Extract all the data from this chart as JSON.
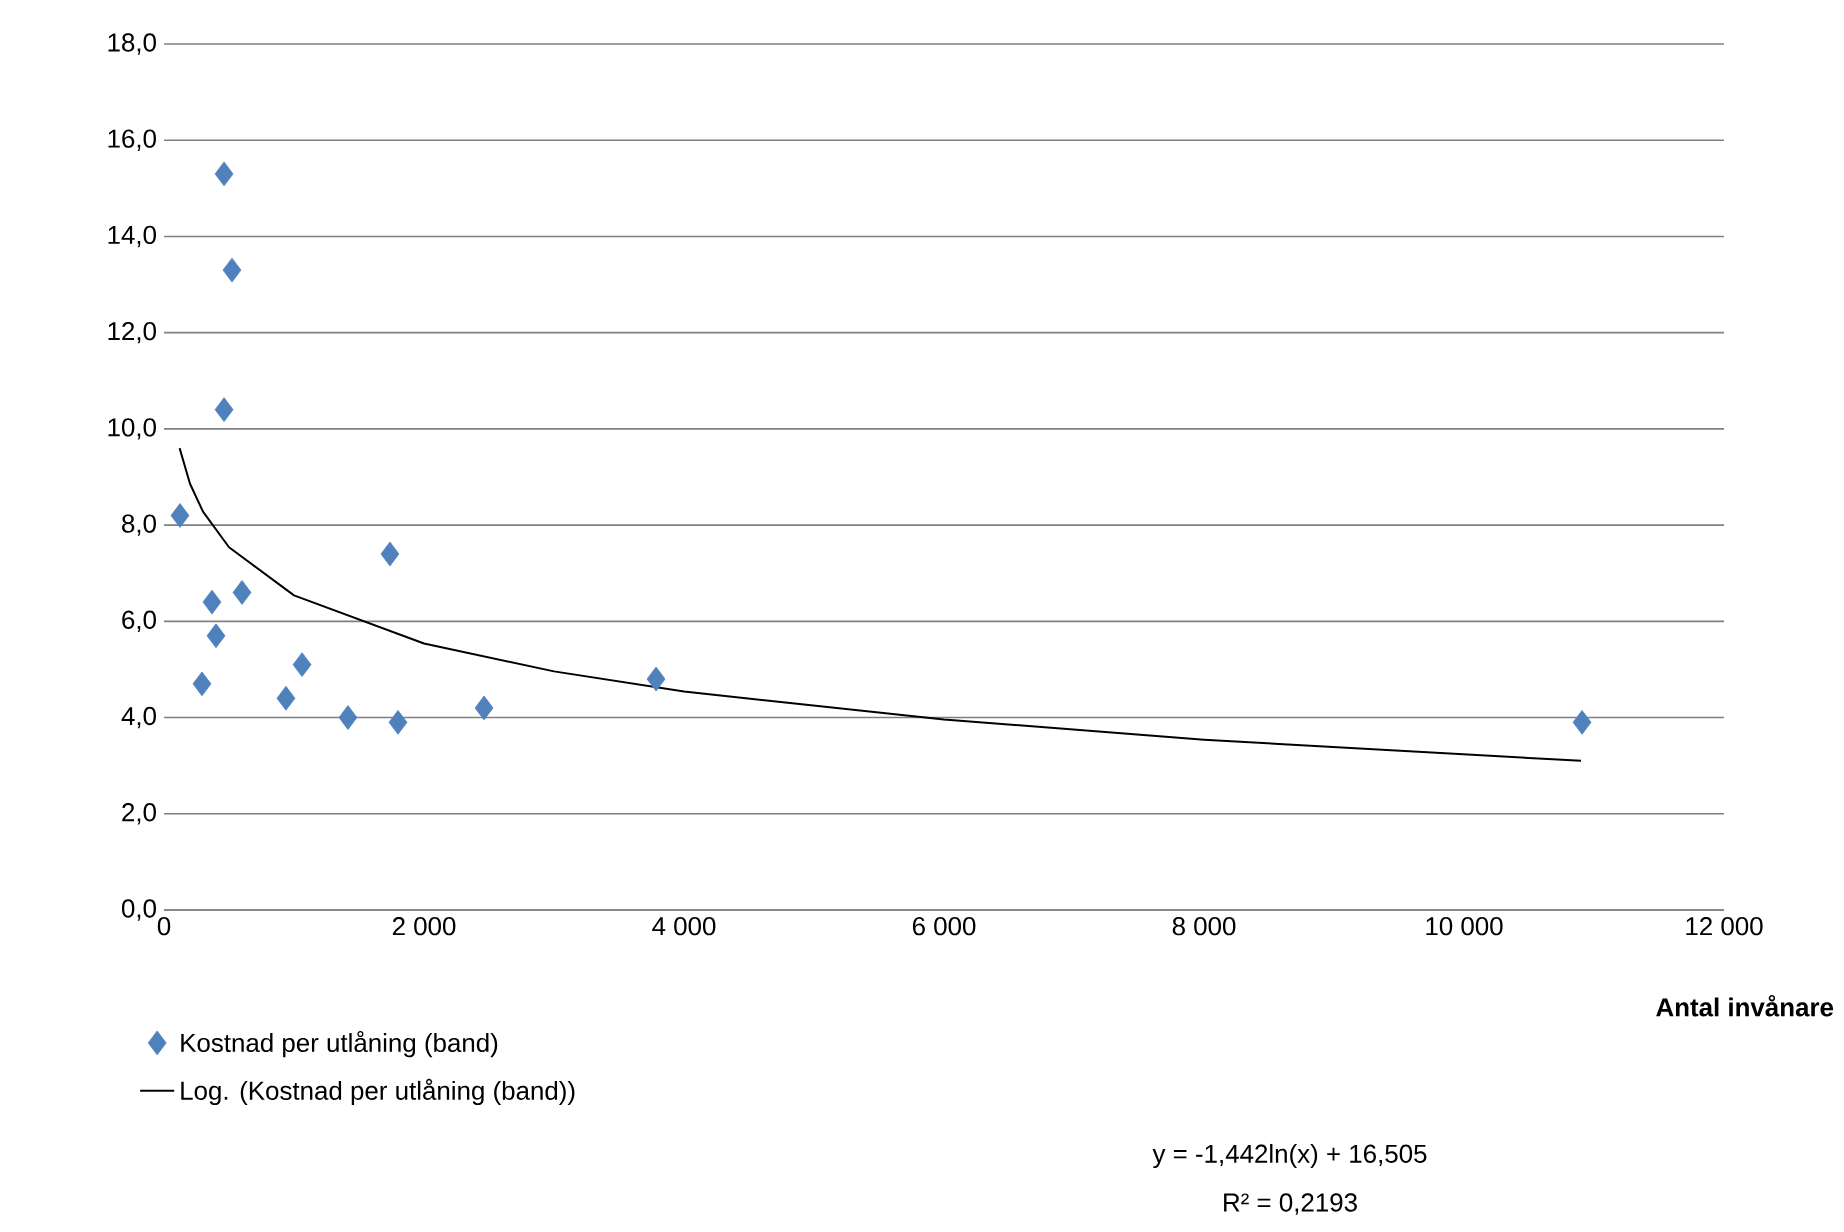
{
  "chart_data": {
    "type": "scatter",
    "xlabel": "Antal invånare",
    "xlim": [
      0,
      12000
    ],
    "ylim": [
      0,
      18
    ],
    "xticks": [
      0,
      {
        "value": 2000,
        "label": "2 000"
      },
      {
        "value": 4000,
        "label": "4 000"
      },
      {
        "value": 6000,
        "label": "6 000"
      },
      {
        "value": 8000,
        "label": "8 000"
      },
      {
        "value": 10000,
        "label": "10 000"
      },
      {
        "value": 12000,
        "label": "12 000"
      }
    ],
    "yticks": [
      {
        "value": 0,
        "label": "0,0"
      },
      {
        "value": 2,
        "label": "2,0"
      },
      {
        "value": 4,
        "label": "4,0"
      },
      {
        "value": 6,
        "label": "6,0"
      },
      {
        "value": 8,
        "label": "8,0"
      },
      {
        "value": 10,
        "label": "10,0"
      },
      {
        "value": 12,
        "label": "12,0"
      },
      {
        "value": 14,
        "label": "14,0"
      },
      {
        "value": 16,
        "label": "16,0"
      },
      {
        "value": 18,
        "label": "18,0"
      }
    ],
    "grid": "y",
    "legend": "bottom left",
    "marker": "diamond",
    "series": [
      {
        "name": "Kostnad per utlåning  (band)",
        "color": "#4f81bd",
        "x": [
          123,
          462,
          523,
          462,
          369,
          400,
          600,
          292,
          938,
          1062,
          1415,
          1800,
          1738,
          2462,
          3785,
          10908
        ],
        "values": [
          8.2,
          15.3,
          13.3,
          10.4,
          6.4,
          5.7,
          6.6,
          4.7,
          4.4,
          5.1,
          4.0,
          3.9,
          7.4,
          4.2,
          4.8,
          3.9
        ]
      },
      {
        "name": "Log. (Kostnad per utlåning  (band))",
        "type": "line",
        "color": "#000000",
        "marker": "none",
        "x": [
          120,
          200,
          300,
          500,
          1000,
          2000,
          3000,
          4000,
          6000,
          8000,
          10900
        ],
        "values": [
          9.6,
          8.86,
          8.28,
          7.54,
          6.54,
          5.54,
          4.96,
          4.54,
          3.96,
          3.54,
          3.1
        ]
      }
    ],
    "annotations": [
      "y = -1,442ln(x) + 16,505",
      "R² = 0,2193"
    ]
  }
}
